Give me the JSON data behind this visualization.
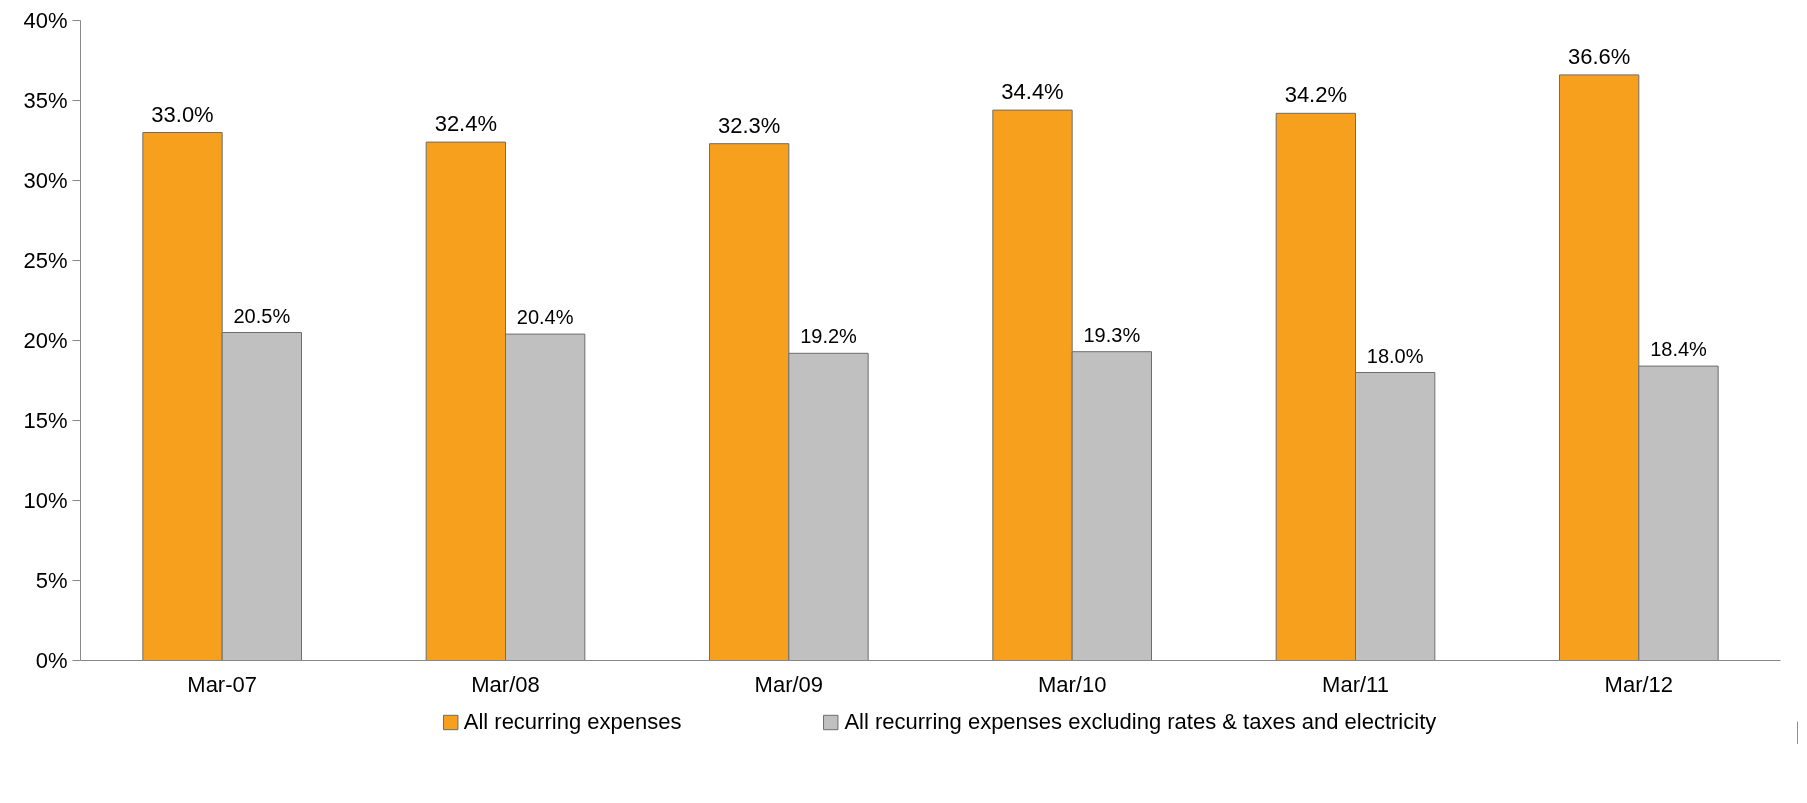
{
  "chart_data": {
    "type": "bar",
    "categories": [
      "Mar-07",
      "Mar/08",
      "Mar/09",
      "Mar/10",
      "Mar/11",
      "Mar/12"
    ],
    "series": [
      {
        "name": "All recurring expenses",
        "color": "#f7a01e",
        "values": [
          33.0,
          32.4,
          32.3,
          34.4,
          34.2,
          36.6
        ],
        "value_labels": [
          "33.0%",
          "32.4%",
          "32.3%",
          "34.4%",
          "34.2%",
          "36.6%"
        ]
      },
      {
        "name": "All recurring expenses excluding rates & taxes and electricity",
        "color": "#c0c0c0",
        "values": [
          20.5,
          20.4,
          19.2,
          19.3,
          18.0,
          18.4
        ],
        "value_labels": [
          "20.5%",
          "20.4%",
          "19.2%",
          "19.3%",
          "18.0%",
          "18.4%"
        ]
      }
    ],
    "ylim": [
      0,
      40
    ],
    "yticks": [
      {
        "value": 0,
        "label": "0%"
      },
      {
        "value": 5,
        "label": "5%"
      },
      {
        "value": 10,
        "label": "10%"
      },
      {
        "value": 15,
        "label": "15%"
      },
      {
        "value": 20,
        "label": "20%"
      },
      {
        "value": 25,
        "label": "25%"
      },
      {
        "value": 30,
        "label": "30%"
      },
      {
        "value": 35,
        "label": "35%"
      },
      {
        "value": 40,
        "label": "40%"
      }
    ],
    "grid": false,
    "legend": "bottom"
  }
}
